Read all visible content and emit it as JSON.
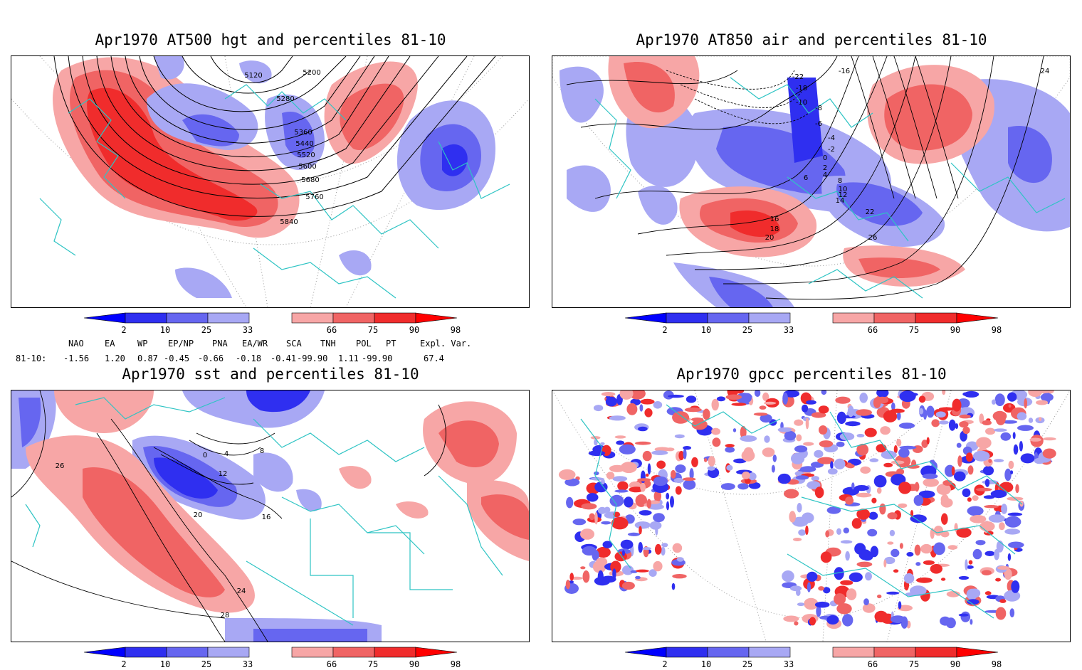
{
  "colors": {
    "coast": "#2ec4c4",
    "blue_dark": "#0000ff",
    "blue_2_10": "#2f2ff0",
    "blue_10_25": "#6666f0",
    "blue_25_33": "#a8a8f4",
    "red_66_75": "#f7a6a6",
    "red_75_90": "#f06464",
    "red_90_98": "#f02c2c",
    "red_dark": "#ff0000"
  },
  "colorbar_ticks": [
    "2",
    "10",
    "25",
    "33",
    "66",
    "75",
    "90",
    "98"
  ],
  "panels": [
    {
      "id": "p1",
      "title": "Apr1970 AT500 hgt and percentiles 81-10",
      "contour_labels": [
        "5120",
        "5200",
        "5280",
        "5360",
        "5440",
        "5520",
        "5600",
        "5680",
        "5760",
        "5840"
      ]
    },
    {
      "id": "p2",
      "title": "Apr1970 AT850 air and percentiles 81-10",
      "contour_labels": [
        "-22",
        "-16",
        "-18",
        "-10",
        "-8",
        "-6",
        "-4",
        "-2",
        "0",
        "2",
        "4",
        "6",
        "8",
        "10",
        "12",
        "14",
        "16",
        "18",
        "20",
        "22",
        "24",
        "26"
      ]
    },
    {
      "id": "p3",
      "title": "Apr1970 sst and percentiles 81-10",
      "contour_labels": [
        "0",
        "4",
        "8",
        "12",
        "16",
        "20",
        "24",
        "26",
        "28"
      ]
    },
    {
      "id": "p4",
      "title": "Apr1970 gpcc percentiles 81-10",
      "contour_labels": []
    }
  ],
  "indices": {
    "headers": [
      "NAO",
      "EA",
      "WP",
      "EP/NP",
      "PNA",
      "EA/WR",
      "SCA",
      "TNH",
      "POL",
      "PT",
      "Expl. Var."
    ],
    "row_label": "81-10:",
    "values": [
      "-1.56",
      "1.20",
      "0.87",
      "-0.45",
      "-0.66",
      "-0.18",
      "-0.41",
      "-99.90",
      "1.11",
      "-99.90",
      "67.4"
    ]
  }
}
